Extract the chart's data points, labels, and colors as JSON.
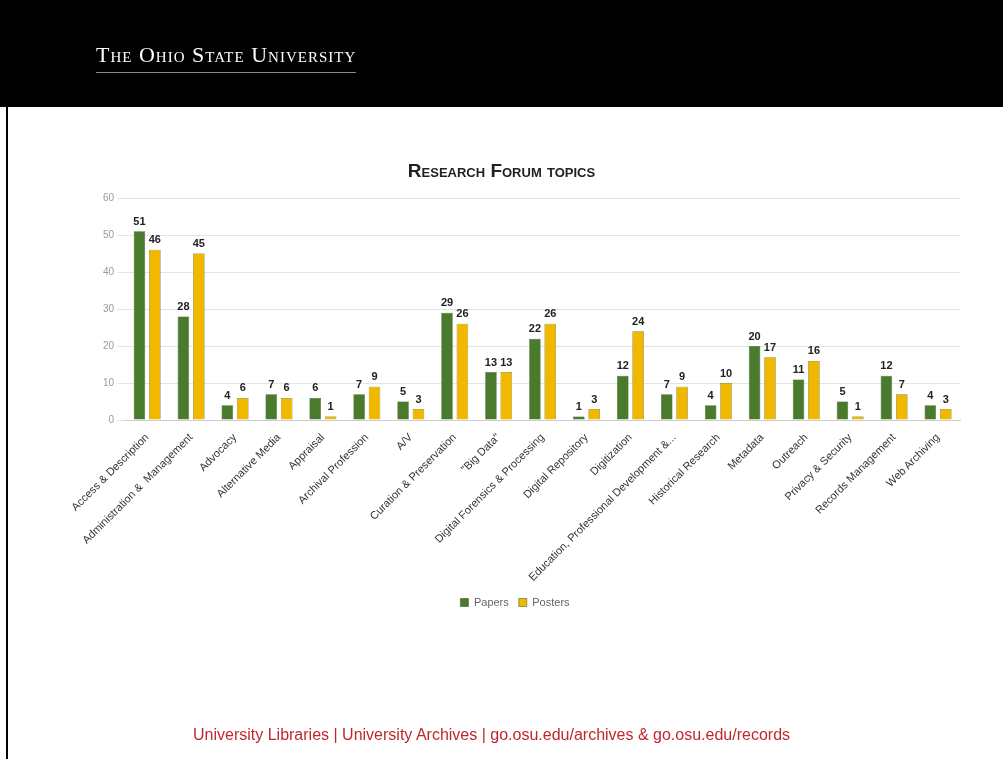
{
  "chart_data": {
    "type": "bar",
    "title": "Research Forum topics",
    "categories": [
      "Access & Description",
      "Administration &  Management",
      "Advocacy",
      "Alternative Media",
      "Appraisal",
      "Archival Profession",
      "A/V",
      "Curation & Preservation",
      "\"Big Data\"",
      "Digital Forensics & Processing",
      "Digital Repository",
      "Digitization",
      "Education, Professional Development &...",
      "Historical Research",
      "Metadata",
      "Outreach",
      "Privacy & Security",
      "Records Management",
      "Web Archiving"
    ],
    "series": [
      {
        "name": "Papers",
        "color": "#4a7a2c",
        "values": [
          51,
          28,
          4,
          7,
          6,
          7,
          5,
          29,
          13,
          22,
          1,
          12,
          7,
          4,
          20,
          11,
          5,
          12,
          4
        ]
      },
      {
        "name": "Posters",
        "color": "#f2b800",
        "values": [
          46,
          45,
          6,
          6,
          1,
          9,
          3,
          26,
          13,
          26,
          3,
          24,
          9,
          10,
          17,
          16,
          1,
          7,
          3
        ]
      }
    ],
    "ylim": [
      0,
      60
    ],
    "yticks": [
      0,
      10,
      20,
      30,
      40,
      50,
      60
    ],
    "grid": "y",
    "legend": "bottom",
    "data_labels": true,
    "annotations": [
      "The Ohio State University",
      "University Libraries | University Archives | go.osu.edu/archives & go.osu.edu/records"
    ]
  }
}
